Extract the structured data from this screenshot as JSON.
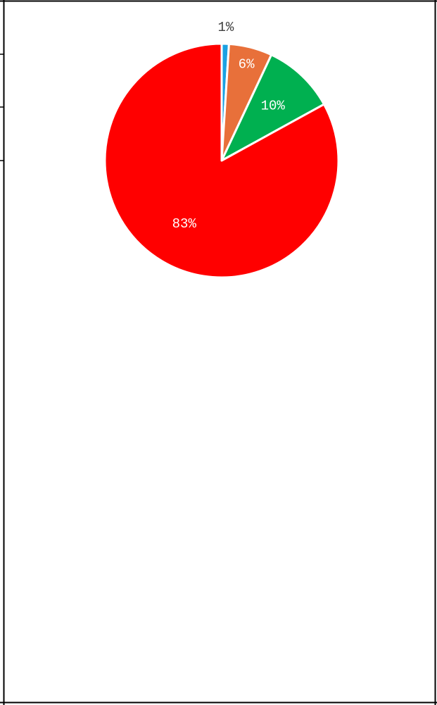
{
  "chart_data": {
    "type": "pie",
    "title": "",
    "slices": [
      {
        "label": "1%",
        "value": 1,
        "color": "#1ba1e2"
      },
      {
        "label": "6%",
        "value": 6,
        "color": "#e8703a"
      },
      {
        "label": "10%",
        "value": 10,
        "color": "#00b050"
      },
      {
        "label": "83%",
        "value": 83,
        "color": "#ff0000"
      }
    ],
    "label_colors": [
      "#404040",
      "#ffffff",
      "#ffffff",
      "#ffffff"
    ],
    "start_angle_deg": 0,
    "direction": "clockwise",
    "slice_border_color": "#ffffff",
    "legend": "none"
  }
}
